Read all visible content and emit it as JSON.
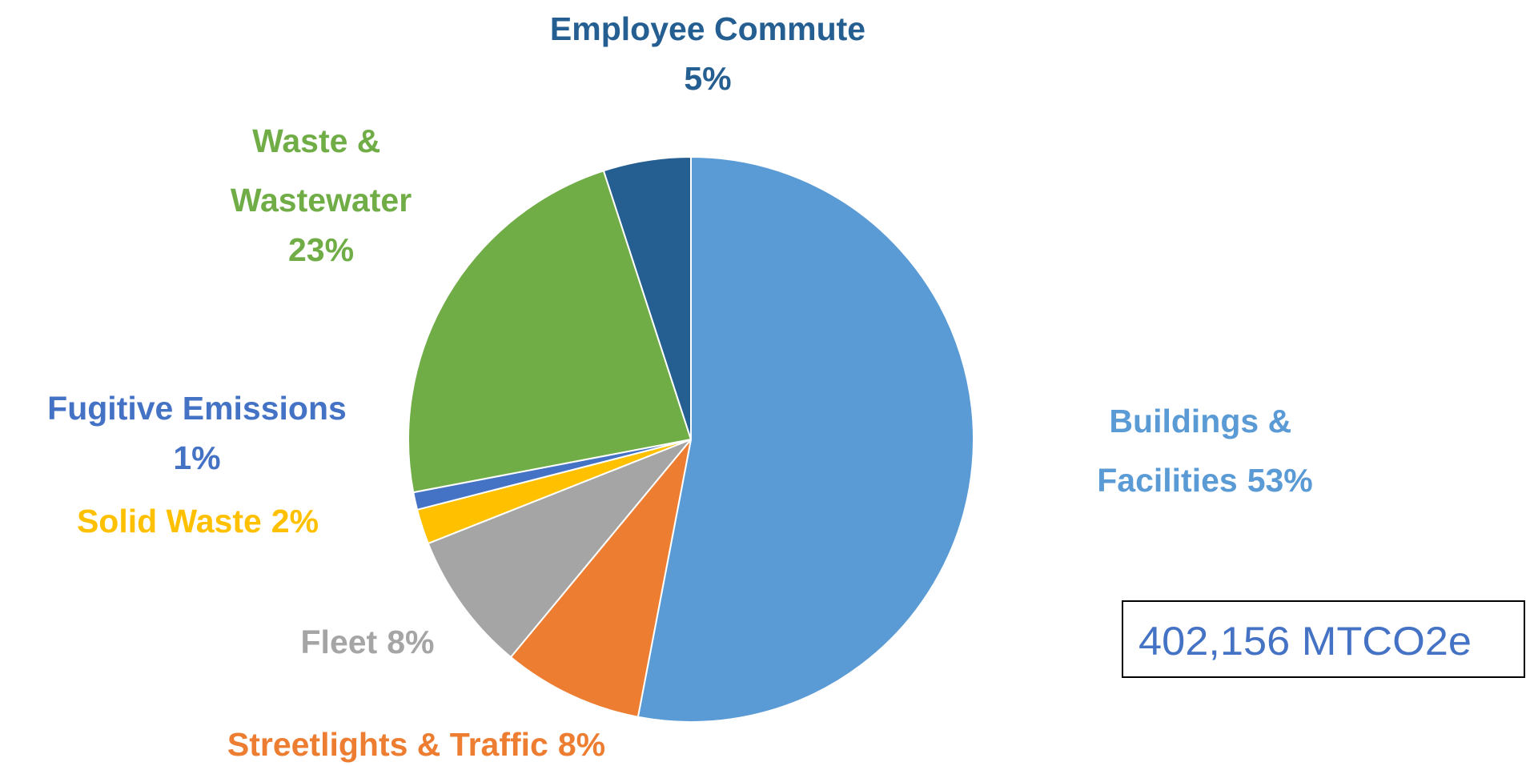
{
  "chart_data": {
    "type": "pie",
    "categories": [
      "Buildings & Facilities",
      "Streetlights & Traffic",
      "Fleet",
      "Solid Waste",
      "Fugitive Emissions",
      "Waste & Wastewater",
      "Employee Commute"
    ],
    "values": [
      53,
      8,
      8,
      2,
      1,
      23,
      5
    ],
    "value_labels": [
      "53%",
      "8%",
      "8%",
      "2%",
      "1%",
      "23%",
      "5%"
    ],
    "colors": [
      "#5b9bd5",
      "#ed7d31",
      "#a5a5a5",
      "#ffc000",
      "#4472c4",
      "#70ad47",
      "#255e91"
    ],
    "annotation": "402,156 MTCO2e"
  }
}
